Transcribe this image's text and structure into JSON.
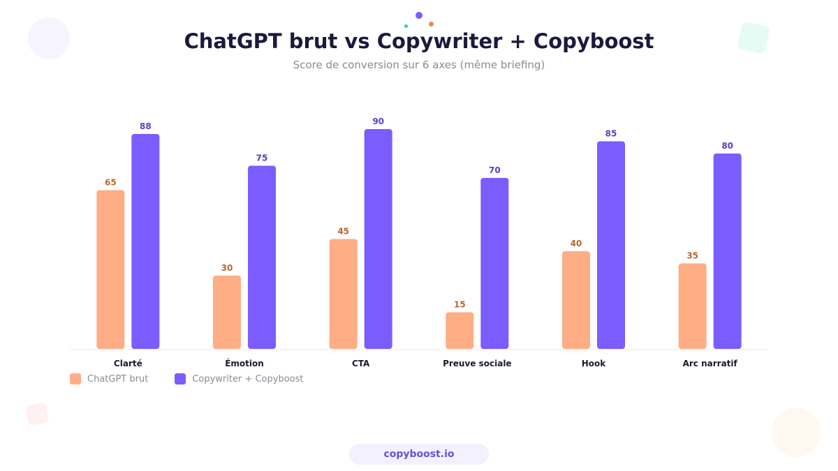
{
  "header": {
    "title": "ChatGPT brut vs Copywriter + Copyboost",
    "subtitle": "Score de conversion sur 6 axes (même briefing)"
  },
  "footer": {
    "link_label": "copyboost.io"
  },
  "colors": {
    "series_a": "#ffad85",
    "series_a_label": "#b8672f",
    "series_b": "#7b5cff",
    "series_b_label": "#5a3fc4",
    "axis_text": "#1a1a2e",
    "dot_purple": "#7b5cff",
    "dot_orange": "#f08a4b",
    "dot_green": "#2ecf8f"
  },
  "chart_data": {
    "type": "bar",
    "title": "ChatGPT brut vs Copywriter + Copyboost",
    "subtitle": "Score de conversion sur 6 axes (même briefing)",
    "categories": [
      "Clarté",
      "Émotion",
      "CTA",
      "Preuve sociale",
      "Hook",
      "Arc narratif"
    ],
    "series": [
      {
        "name": "ChatGPT brut",
        "values": [
          65,
          30,
          45,
          15,
          40,
          35
        ]
      },
      {
        "name": "Copywriter + Copyboost",
        "values": [
          88,
          75,
          90,
          70,
          85,
          80
        ]
      }
    ],
    "xlabel": "",
    "ylabel": "",
    "ylim": [
      0,
      100
    ],
    "grid": false,
    "legend_position": "bottom-left",
    "data_labels": true
  }
}
